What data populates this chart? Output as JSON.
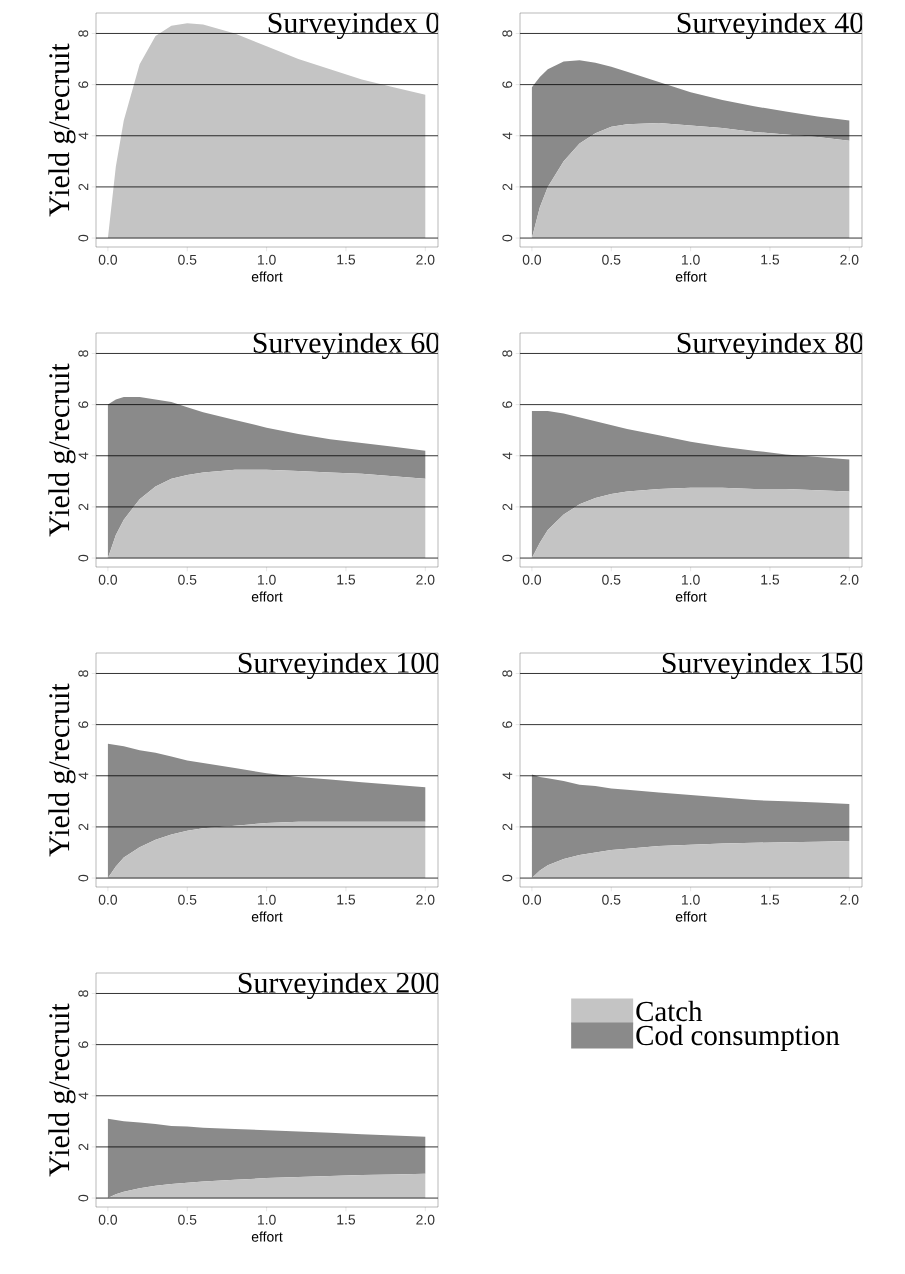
{
  "chart_data": [
    {
      "type": "area",
      "stacked": true,
      "title": "Surveyindex 0",
      "xlabel": "effort",
      "ylabel": "Yield g/recruit",
      "grid": "y",
      "xlim": [
        -0.075,
        2.08
      ],
      "ylim": [
        -0.35,
        8.8
      ],
      "xticks": [
        {
          "value": 0,
          "label": "0.0"
        },
        {
          "value": 0.5,
          "label": "0.5"
        },
        {
          "value": 1,
          "label": "1.0"
        },
        {
          "value": 1.5,
          "label": "1.5"
        },
        {
          "value": 2,
          "label": "2.0"
        }
      ],
      "yticks": [
        0,
        2,
        4,
        6,
        8
      ],
      "x": [
        0,
        0.05,
        0.1,
        0.2,
        0.3,
        0.4,
        0.5,
        0.6,
        0.8,
        1.0,
        1.2,
        1.4,
        1.6,
        1.8,
        2.0
      ],
      "series": [
        {
          "color": "#c4c4c4",
          "values": [
            0,
            2.8,
            4.6,
            6.8,
            7.9,
            8.3,
            8.4,
            8.35,
            8.0,
            7.5,
            7.0,
            6.6,
            6.2,
            5.9,
            5.6
          ]
        }
      ]
    },
    {
      "type": "area",
      "stacked": true,
      "title": "Surveyindex 40",
      "xlabel": "effort",
      "grid": "y",
      "xlim": [
        -0.075,
        2.08
      ],
      "ylim": [
        -0.35,
        8.8
      ],
      "xticks": [
        {
          "value": 0,
          "label": "0.0"
        },
        {
          "value": 0.5,
          "label": "0.5"
        },
        {
          "value": 1,
          "label": "1.0"
        },
        {
          "value": 1.5,
          "label": "1.5"
        },
        {
          "value": 2,
          "label": "2.0"
        }
      ],
      "yticks": [
        0,
        2,
        4,
        6,
        8
      ],
      "x": [
        0,
        0.05,
        0.1,
        0.2,
        0.3,
        0.4,
        0.5,
        0.6,
        0.8,
        1.0,
        1.2,
        1.4,
        1.6,
        1.8,
        2.0
      ],
      "series": [
        {
          "color": "#c4c4c4",
          "values": [
            0,
            1.2,
            2.0,
            3.0,
            3.7,
            4.1,
            4.35,
            4.45,
            4.5,
            4.4,
            4.3,
            4.15,
            4.05,
            3.95,
            3.8
          ]
        },
        {
          "color": "#8a8a8a",
          "values": [
            5.9,
            5.1,
            4.6,
            3.9,
            3.25,
            2.75,
            2.35,
            2.05,
            1.6,
            1.3,
            1.1,
            1.0,
            0.9,
            0.8,
            0.8
          ]
        }
      ]
    },
    {
      "type": "area",
      "stacked": true,
      "title": "Surveyindex 60",
      "xlabel": "effort",
      "ylabel": "Yield g/recruit",
      "grid": "y",
      "xlim": [
        -0.075,
        2.08
      ],
      "ylim": [
        -0.35,
        8.8
      ],
      "xticks": [
        {
          "value": 0,
          "label": "0.0"
        },
        {
          "value": 0.5,
          "label": "0.5"
        },
        {
          "value": 1,
          "label": "1.0"
        },
        {
          "value": 1.5,
          "label": "1.5"
        },
        {
          "value": 2,
          "label": "2.0"
        }
      ],
      "yticks": [
        0,
        2,
        4,
        6,
        8
      ],
      "x": [
        0,
        0.05,
        0.1,
        0.2,
        0.3,
        0.4,
        0.5,
        0.6,
        0.8,
        1.0,
        1.2,
        1.4,
        1.6,
        1.8,
        2.0
      ],
      "series": [
        {
          "color": "#c4c4c4",
          "values": [
            0,
            0.9,
            1.5,
            2.3,
            2.8,
            3.1,
            3.25,
            3.35,
            3.45,
            3.45,
            3.4,
            3.35,
            3.3,
            3.2,
            3.1
          ]
        },
        {
          "color": "#8a8a8a",
          "values": [
            6.0,
            5.3,
            4.8,
            4.0,
            3.4,
            3.0,
            2.65,
            2.35,
            1.95,
            1.65,
            1.45,
            1.3,
            1.2,
            1.15,
            1.1
          ]
        }
      ]
    },
    {
      "type": "area",
      "stacked": true,
      "title": "Surveyindex 80",
      "xlabel": "effort",
      "grid": "y",
      "xlim": [
        -0.075,
        2.08
      ],
      "ylim": [
        -0.35,
        8.8
      ],
      "xticks": [
        {
          "value": 0,
          "label": "0.0"
        },
        {
          "value": 0.5,
          "label": "0.5"
        },
        {
          "value": 1,
          "label": "1.0"
        },
        {
          "value": 1.5,
          "label": "1.5"
        },
        {
          "value": 2,
          "label": "2.0"
        }
      ],
      "yticks": [
        0,
        2,
        4,
        6,
        8
      ],
      "x": [
        0,
        0.05,
        0.1,
        0.2,
        0.3,
        0.4,
        0.5,
        0.6,
        0.8,
        1.0,
        1.2,
        1.4,
        1.6,
        1.8,
        2.0
      ],
      "series": [
        {
          "color": "#c4c4c4",
          "values": [
            0,
            0.6,
            1.1,
            1.7,
            2.1,
            2.35,
            2.5,
            2.6,
            2.7,
            2.75,
            2.75,
            2.7,
            2.7,
            2.65,
            2.6
          ]
        },
        {
          "color": "#8a8a8a",
          "values": [
            5.75,
            5.15,
            4.65,
            3.95,
            3.4,
            3.0,
            2.7,
            2.45,
            2.1,
            1.8,
            1.6,
            1.5,
            1.35,
            1.3,
            1.25
          ]
        }
      ]
    },
    {
      "type": "area",
      "stacked": true,
      "title": "Surveyindex 100",
      "xlabel": "effort",
      "ylabel": "Yield g/recruit",
      "grid": "y",
      "xlim": [
        -0.075,
        2.08
      ],
      "ylim": [
        -0.35,
        8.8
      ],
      "xticks": [
        {
          "value": 0,
          "label": "0.0"
        },
        {
          "value": 0.5,
          "label": "0.5"
        },
        {
          "value": 1,
          "label": "1.0"
        },
        {
          "value": 1.5,
          "label": "1.5"
        },
        {
          "value": 2,
          "label": "2.0"
        }
      ],
      "yticks": [
        0,
        2,
        4,
        6,
        8
      ],
      "x": [
        0,
        0.05,
        0.1,
        0.2,
        0.3,
        0.4,
        0.5,
        0.6,
        0.8,
        1.0,
        1.2,
        1.4,
        1.6,
        1.8,
        2.0
      ],
      "series": [
        {
          "color": "#c4c4c4",
          "values": [
            0,
            0.45,
            0.8,
            1.2,
            1.5,
            1.7,
            1.85,
            1.95,
            2.05,
            2.15,
            2.2,
            2.2,
            2.2,
            2.2,
            2.2
          ]
        },
        {
          "color": "#8a8a8a",
          "values": [
            5.25,
            4.75,
            4.35,
            3.8,
            3.4,
            3.05,
            2.75,
            2.55,
            2.25,
            1.95,
            1.75,
            1.65,
            1.55,
            1.45,
            1.35
          ]
        }
      ]
    },
    {
      "type": "area",
      "stacked": true,
      "title": "Surveyindex 150",
      "xlabel": "effort",
      "grid": "y",
      "xlim": [
        -0.075,
        2.08
      ],
      "ylim": [
        -0.35,
        8.8
      ],
      "xticks": [
        {
          "value": 0,
          "label": "0.0"
        },
        {
          "value": 0.5,
          "label": "0.5"
        },
        {
          "value": 1,
          "label": "1.0"
        },
        {
          "value": 1.5,
          "label": "1.5"
        },
        {
          "value": 2,
          "label": "2.0"
        }
      ],
      "yticks": [
        0,
        2,
        4,
        6,
        8
      ],
      "x": [
        0,
        0.05,
        0.1,
        0.2,
        0.3,
        0.4,
        0.5,
        0.6,
        0.8,
        1.0,
        1.2,
        1.4,
        1.6,
        1.8,
        2.0
      ],
      "series": [
        {
          "color": "#c4c4c4",
          "values": [
            0,
            0.3,
            0.5,
            0.75,
            0.9,
            1.0,
            1.1,
            1.15,
            1.25,
            1.3,
            1.35,
            1.38,
            1.4,
            1.42,
            1.45
          ]
        },
        {
          "color": "#8a8a8a",
          "values": [
            4.05,
            3.65,
            3.4,
            3.05,
            2.75,
            2.6,
            2.4,
            2.3,
            2.1,
            1.95,
            1.8,
            1.67,
            1.6,
            1.53,
            1.45
          ]
        }
      ]
    },
    {
      "type": "area",
      "stacked": true,
      "title": "Surveyindex 200",
      "xlabel": "effort",
      "ylabel": "Yield g/recruit",
      "grid": "y",
      "legend": "right",
      "xlim": [
        -0.075,
        2.08
      ],
      "ylim": [
        -0.35,
        8.8
      ],
      "xticks": [
        {
          "value": 0,
          "label": "0.0"
        },
        {
          "value": 0.5,
          "label": "0.5"
        },
        {
          "value": 1,
          "label": "1.0"
        },
        {
          "value": 1.5,
          "label": "1.5"
        },
        {
          "value": 2,
          "label": "2.0"
        }
      ],
      "yticks": [
        0,
        2,
        4,
        6,
        8
      ],
      "x": [
        0,
        0.05,
        0.1,
        0.2,
        0.3,
        0.4,
        0.5,
        0.6,
        0.8,
        1.0,
        1.2,
        1.4,
        1.6,
        1.8,
        2.0
      ],
      "series": [
        {
          "name": "Catch",
          "color": "#c4c4c4",
          "values": [
            0,
            0.15,
            0.25,
            0.38,
            0.48,
            0.55,
            0.6,
            0.65,
            0.72,
            0.78,
            0.82,
            0.86,
            0.9,
            0.92,
            0.95
          ]
        },
        {
          "name": "Cod consumption",
          "color": "#8a8a8a",
          "values": [
            3.1,
            2.9,
            2.75,
            2.57,
            2.42,
            2.27,
            2.2,
            2.1,
            1.98,
            1.87,
            1.78,
            1.69,
            1.6,
            1.53,
            1.45
          ]
        }
      ]
    }
  ]
}
